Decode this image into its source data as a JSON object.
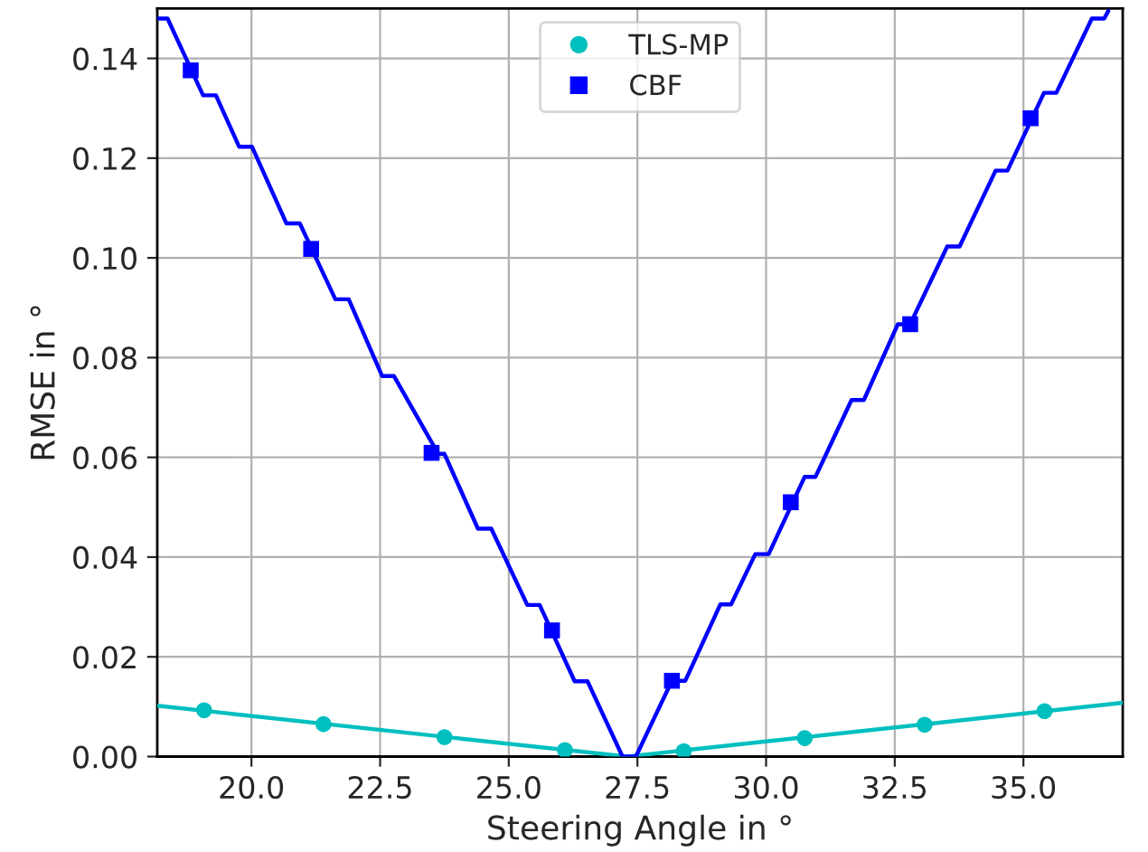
{
  "chart_data": {
    "type": "line",
    "xlabel": "Steering Angle in °",
    "ylabel": "RMSE in °",
    "xlim": [
      18.17,
      36.93
    ],
    "ylim": [
      0,
      0.15
    ],
    "xticks": [
      {
        "value": 20,
        "label": "20.0"
      },
      {
        "value": 22.5,
        "label": "22.5"
      },
      {
        "value": 25,
        "label": "25.0"
      },
      {
        "value": 27.5,
        "label": "27.5"
      },
      {
        "value": 30,
        "label": "30.0"
      },
      {
        "value": 32.5,
        "label": "32.5"
      },
      {
        "value": 35,
        "label": "35.0"
      }
    ],
    "yticks": [
      {
        "value": 0,
        "label": "0.00"
      },
      {
        "value": 0.02,
        "label": "0.02"
      },
      {
        "value": 0.04,
        "label": "0.04"
      },
      {
        "value": 0.06,
        "label": "0.06"
      },
      {
        "value": 0.08,
        "label": "0.08"
      },
      {
        "value": 0.1,
        "label": "0.10"
      },
      {
        "value": 0.12,
        "label": "0.12"
      },
      {
        "value": 0.14,
        "label": "0.14"
      }
    ],
    "grid": true,
    "legend": "top",
    "series": [
      {
        "color": "#00bfbf",
        "marker": "none",
        "x": [
          18.17,
          27.3,
          36.93
        ],
        "values": [
          0.0102,
          0,
          0.0108
        ]
      },
      {
        "color": "#0000ff",
        "marker": "none",
        "x": [
          18.17,
          18.37,
          19.06,
          19.31,
          19.76,
          20.01,
          20.68,
          20.94,
          21.63,
          21.89,
          22.54,
          22.77,
          23.63,
          23.75,
          24.4,
          24.66,
          25.36,
          25.6,
          26.28,
          26.53,
          27.21,
          27.47,
          28.17,
          28.43,
          29.11,
          29.32,
          29.79,
          30.05,
          30.75,
          30.96,
          31.66,
          31.9,
          32.56,
          32.8,
          33.52,
          33.76,
          34.46,
          34.69,
          35.4,
          35.64,
          36.33,
          36.57,
          36.65
        ],
        "values": [
          0.148,
          0.148,
          0.1326,
          0.1326,
          0.1223,
          0.1223,
          0.1069,
          0.1069,
          0.0917,
          0.0917,
          0.0763,
          0.0763,
          0.0607,
          0.0607,
          0.0457,
          0.0457,
          0.0304,
          0.0304,
          0.0151,
          0.0151,
          0,
          0,
          0.0152,
          0.0152,
          0.0305,
          0.0305,
          0.0406,
          0.0406,
          0.0561,
          0.0561,
          0.0715,
          0.0715,
          0.0867,
          0.0867,
          0.1023,
          0.1023,
          0.1175,
          0.1175,
          0.1331,
          0.1331,
          0.148,
          0.148,
          0.1495
        ]
      },
      {
        "type": "scatter",
        "name": "TLS-MP",
        "color": "#00bfbf",
        "marker": "circle",
        "x": [
          19.08,
          21.4,
          23.75,
          26.09,
          28.4,
          30.75,
          33.08,
          35.41
        ],
        "values": [
          0.0093,
          0.0065,
          0.0039,
          0.0013,
          0.0011,
          0.0037,
          0.0064,
          0.0091
        ]
      },
      {
        "type": "scatter",
        "name": "CBF",
        "color": "#0000ff",
        "marker": "square",
        "x": [
          18.82,
          21.16,
          23.5,
          25.84,
          28.17,
          30.48,
          32.8,
          35.14
        ],
        "values": [
          0.1376,
          0.1018,
          0.0609,
          0.0253,
          0.0152,
          0.051,
          0.0867,
          0.128
        ]
      }
    ]
  }
}
